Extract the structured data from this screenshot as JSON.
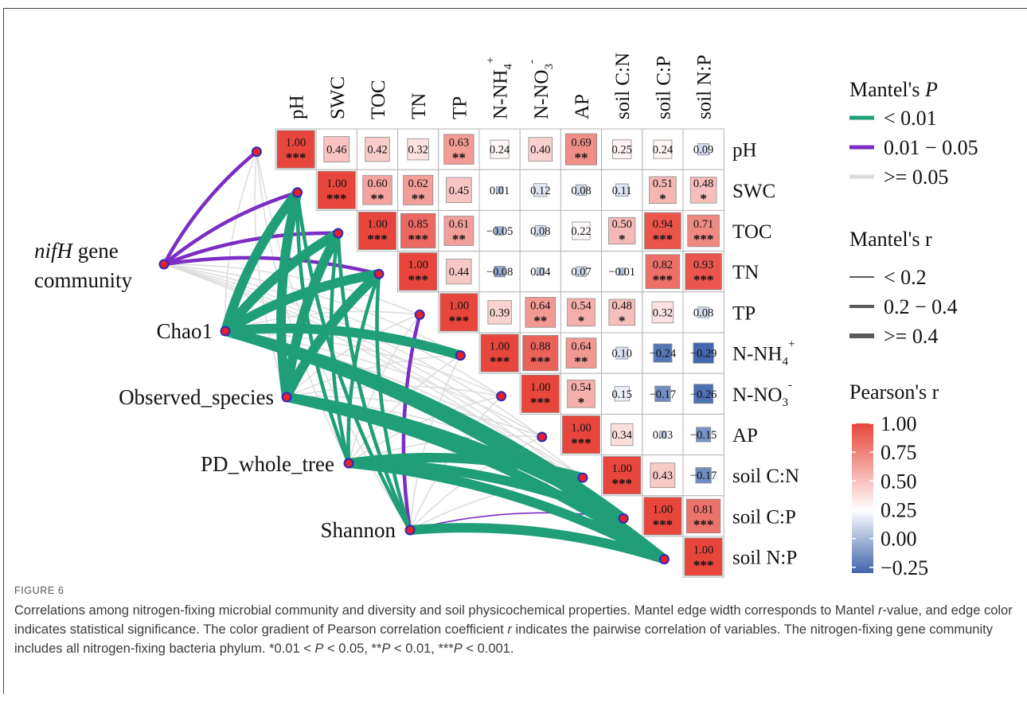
{
  "chart_data": {
    "type": "heatmap",
    "title": "",
    "variables": [
      "pH",
      "SWC",
      "TOC",
      "TN",
      "TP",
      "N-NH4+",
      "N-NO3-",
      "AP",
      "soil C:N",
      "soil C:P",
      "soil N:P"
    ],
    "variable_labels": [
      {
        "base": "pH",
        "sub": "",
        "sup": ""
      },
      {
        "base": "SWC",
        "sub": "",
        "sup": ""
      },
      {
        "base": "TOC",
        "sub": "",
        "sup": ""
      },
      {
        "base": "TN",
        "sub": "",
        "sup": ""
      },
      {
        "base": "TP",
        "sub": "",
        "sup": ""
      },
      {
        "base": "N-NH",
        "sub": "4",
        "sup": "+"
      },
      {
        "base": "N-NO",
        "sub": "3",
        "sup": "-"
      },
      {
        "base": "AP",
        "sub": "",
        "sup": ""
      },
      {
        "base": "soil C:N",
        "sub": "",
        "sup": ""
      },
      {
        "base": "soil C:P",
        "sub": "",
        "sup": ""
      },
      {
        "base": "soil N:P",
        "sub": "",
        "sup": ""
      }
    ],
    "pearson_matrix_upper": [
      [
        {
          "r": 1.0,
          "label": "1.00",
          "sig": "***"
        },
        {
          "r": 0.46,
          "label": "0.46",
          "sig": ""
        },
        {
          "r": 0.42,
          "label": "0.42",
          "sig": ""
        },
        {
          "r": 0.32,
          "label": "0.32",
          "sig": ""
        },
        {
          "r": 0.63,
          "label": "0.63",
          "sig": "**"
        },
        {
          "r": 0.24,
          "label": "0.24",
          "sig": ""
        },
        {
          "r": 0.4,
          "label": "0.40",
          "sig": ""
        },
        {
          "r": 0.69,
          "label": "0.69",
          "sig": "**"
        },
        {
          "r": 0.25,
          "label": "0.25",
          "sig": ""
        },
        {
          "r": 0.24,
          "label": "0.24",
          "sig": ""
        },
        {
          "r": 0.09,
          "label": "0.09",
          "sig": ""
        }
      ],
      [
        {
          "r": 1.0,
          "label": "1.00",
          "sig": "***"
        },
        {
          "r": 0.6,
          "label": "0.60",
          "sig": "**"
        },
        {
          "r": 0.62,
          "label": "0.62",
          "sig": "**"
        },
        {
          "r": 0.45,
          "label": "0.45",
          "sig": ""
        },
        {
          "r": 0.01,
          "label": "0.01",
          "sig": ""
        },
        {
          "r": 0.12,
          "label": "0.12",
          "sig": ""
        },
        {
          "r": 0.08,
          "label": "0.08",
          "sig": ""
        },
        {
          "r": 0.11,
          "label": "0.11",
          "sig": ""
        },
        {
          "r": 0.51,
          "label": "0.51",
          "sig": "*"
        },
        {
          "r": 0.48,
          "label": "0.48",
          "sig": "*"
        }
      ],
      [
        {
          "r": 1.0,
          "label": "1.00",
          "sig": "***"
        },
        {
          "r": 0.85,
          "label": "0.85",
          "sig": "***"
        },
        {
          "r": 0.61,
          "label": "0.61",
          "sig": "**"
        },
        {
          "r": -0.05,
          "label": "−0.05",
          "sig": ""
        },
        {
          "r": 0.08,
          "label": "0.08",
          "sig": ""
        },
        {
          "r": 0.22,
          "label": "0.22",
          "sig": ""
        },
        {
          "r": 0.5,
          "label": "0.50",
          "sig": "*"
        },
        {
          "r": 0.94,
          "label": "0.94",
          "sig": "***"
        },
        {
          "r": 0.71,
          "label": "0.71",
          "sig": "***"
        }
      ],
      [
        {
          "r": 1.0,
          "label": "1.00",
          "sig": "***"
        },
        {
          "r": 0.44,
          "label": "0.44",
          "sig": ""
        },
        {
          "r": -0.08,
          "label": "−0.08",
          "sig": ""
        },
        {
          "r": 0.04,
          "label": "0.04",
          "sig": ""
        },
        {
          "r": 0.07,
          "label": "0.07",
          "sig": ""
        },
        {
          "r": -0.01,
          "label": "−0.01",
          "sig": ""
        },
        {
          "r": 0.82,
          "label": "0.82",
          "sig": "***"
        },
        {
          "r": 0.93,
          "label": "0.93",
          "sig": "***"
        }
      ],
      [
        {
          "r": 1.0,
          "label": "1.00",
          "sig": "***"
        },
        {
          "r": 0.39,
          "label": "0.39",
          "sig": ""
        },
        {
          "r": 0.64,
          "label": "0.64",
          "sig": "**"
        },
        {
          "r": 0.54,
          "label": "0.54",
          "sig": "*"
        },
        {
          "r": 0.48,
          "label": "0.48",
          "sig": "*"
        },
        {
          "r": 0.32,
          "label": "0.32",
          "sig": ""
        },
        {
          "r": 0.08,
          "label": "0.08",
          "sig": ""
        }
      ],
      [
        {
          "r": 1.0,
          "label": "1.00",
          "sig": "***"
        },
        {
          "r": 0.88,
          "label": "0.88",
          "sig": "***"
        },
        {
          "r": 0.64,
          "label": "0.64",
          "sig": "**"
        },
        {
          "r": 0.1,
          "label": "0.10",
          "sig": ""
        },
        {
          "r": -0.24,
          "label": "−0.24",
          "sig": ""
        },
        {
          "r": -0.29,
          "label": "−0.29",
          "sig": ""
        }
      ],
      [
        {
          "r": 1.0,
          "label": "1.00",
          "sig": "***"
        },
        {
          "r": 0.54,
          "label": "0.54",
          "sig": "*"
        },
        {
          "r": 0.15,
          "label": "0.15",
          "sig": ""
        },
        {
          "r": -0.17,
          "label": "−0.17",
          "sig": ""
        },
        {
          "r": -0.26,
          "label": "−0.26",
          "sig": ""
        }
      ],
      [
        {
          "r": 1.0,
          "label": "1.00",
          "sig": "***"
        },
        {
          "r": 0.34,
          "label": "0.34",
          "sig": ""
        },
        {
          "r": 0.03,
          "label": "0.03",
          "sig": ""
        },
        {
          "r": -0.15,
          "label": "−0.15",
          "sig": ""
        }
      ],
      [
        {
          "r": 1.0,
          "label": "1.00",
          "sig": "***"
        },
        {
          "r": 0.43,
          "label": "0.43",
          "sig": ""
        },
        {
          "r": -0.17,
          "label": "−0.17",
          "sig": ""
        }
      ],
      [
        {
          "r": 1.0,
          "label": "1.00",
          "sig": "***"
        },
        {
          "r": 0.81,
          "label": "0.81",
          "sig": "***"
        }
      ],
      [
        {
          "r": 1.0,
          "label": "1.00",
          "sig": "***"
        }
      ]
    ],
    "mantel_sources": [
      {
        "label": "community",
        "label_italic": "nifH",
        "label_line1": " gene"
      },
      {
        "label": "Chao1"
      },
      {
        "label": "Observed_species"
      },
      {
        "label": "PD_whole_tree"
      },
      {
        "label": "Shannon"
      }
    ],
    "mantel_edges": [
      {
        "source": 0,
        "target": 0,
        "r_class": "0.2 - 0.4",
        "p_class": "0.01 - 0.05"
      },
      {
        "source": 0,
        "target": 1,
        "r_class": "0.2 - 0.4",
        "p_class": "0.01 - 0.05"
      },
      {
        "source": 0,
        "target": 2,
        "r_class": "0.2 - 0.4",
        "p_class": "0.01 - 0.05"
      },
      {
        "source": 0,
        "target": 3,
        "r_class": "0.2 - 0.4",
        "p_class": "0.01 - 0.05"
      },
      {
        "source": 0,
        "target": 4,
        "r_class": "< 0.2",
        "p_class": ">= 0.05"
      },
      {
        "source": 0,
        "target": 5,
        "r_class": "< 0.2",
        "p_class": ">= 0.05"
      },
      {
        "source": 0,
        "target": 6,
        "r_class": "< 0.2",
        "p_class": ">= 0.05"
      },
      {
        "source": 0,
        "target": 7,
        "r_class": "< 0.2",
        "p_class": ">= 0.05"
      },
      {
        "source": 0,
        "target": 8,
        "r_class": "< 0.2",
        "p_class": ">= 0.05"
      },
      {
        "source": 0,
        "target": 9,
        "r_class": "< 0.2",
        "p_class": ">= 0.05"
      },
      {
        "source": 0,
        "target": 10,
        "r_class": "< 0.2",
        "p_class": ">= 0.05"
      },
      {
        "source": 1,
        "target": 0,
        "r_class": "< 0.2",
        "p_class": ">= 0.05"
      },
      {
        "source": 1,
        "target": 1,
        "r_class": ">= 0.4",
        "p_class": "< 0.01"
      },
      {
        "source": 1,
        "target": 2,
        "r_class": ">= 0.4",
        "p_class": "< 0.01"
      },
      {
        "source": 1,
        "target": 3,
        "r_class": ">= 0.4",
        "p_class": "< 0.01"
      },
      {
        "source": 1,
        "target": 4,
        "r_class": "< 0.2",
        "p_class": ">= 0.05"
      },
      {
        "source": 1,
        "target": 5,
        "r_class": ">= 0.4",
        "p_class": "< 0.01"
      },
      {
        "source": 1,
        "target": 6,
        "r_class": "< 0.2",
        "p_class": ">= 0.05"
      },
      {
        "source": 1,
        "target": 7,
        "r_class": "< 0.2",
        "p_class": ">= 0.05"
      },
      {
        "source": 1,
        "target": 8,
        "r_class": "< 0.2",
        "p_class": ">= 0.05"
      },
      {
        "source": 1,
        "target": 9,
        "r_class": ">= 0.4",
        "p_class": "< 0.01"
      },
      {
        "source": 1,
        "target": 10,
        "r_class": ">= 0.4",
        "p_class": "< 0.01"
      },
      {
        "source": 2,
        "target": 0,
        "r_class": "< 0.2",
        "p_class": ">= 0.05"
      },
      {
        "source": 2,
        "target": 1,
        "r_class": ">= 0.4",
        "p_class": "< 0.01"
      },
      {
        "source": 2,
        "target": 2,
        "r_class": ">= 0.4",
        "p_class": "< 0.01"
      },
      {
        "source": 2,
        "target": 3,
        "r_class": ">= 0.4",
        "p_class": "< 0.01"
      },
      {
        "source": 2,
        "target": 4,
        "r_class": "< 0.2",
        "p_class": ">= 0.05"
      },
      {
        "source": 2,
        "target": 5,
        "r_class": "< 0.2",
        "p_class": ">= 0.05"
      },
      {
        "source": 2,
        "target": 6,
        "r_class": "< 0.2",
        "p_class": ">= 0.05"
      },
      {
        "source": 2,
        "target": 7,
        "r_class": "< 0.2",
        "p_class": ">= 0.05"
      },
      {
        "source": 2,
        "target": 8,
        "r_class": "< 0.2",
        "p_class": ">= 0.05"
      },
      {
        "source": 2,
        "target": 9,
        "r_class": ">= 0.4",
        "p_class": "< 0.01"
      },
      {
        "source": 2,
        "target": 10,
        "r_class": ">= 0.4",
        "p_class": "< 0.01"
      },
      {
        "source": 3,
        "target": 0,
        "r_class": "< 0.2",
        "p_class": ">= 0.05"
      },
      {
        "source": 3,
        "target": 1,
        "r_class": "0.2 - 0.4",
        "p_class": "< 0.01"
      },
      {
        "source": 3,
        "target": 2,
        "r_class": "0.2 - 0.4",
        "p_class": "< 0.01"
      },
      {
        "source": 3,
        "target": 3,
        "r_class": "0.2 - 0.4",
        "p_class": "< 0.01"
      },
      {
        "source": 3,
        "target": 4,
        "r_class": "< 0.2",
        "p_class": ">= 0.05"
      },
      {
        "source": 3,
        "target": 5,
        "r_class": "< 0.2",
        "p_class": ">= 0.05"
      },
      {
        "source": 3,
        "target": 6,
        "r_class": "< 0.2",
        "p_class": ">= 0.05"
      },
      {
        "source": 3,
        "target": 7,
        "r_class": "< 0.2",
        "p_class": ">= 0.05"
      },
      {
        "source": 3,
        "target": 8,
        "r_class": ">= 0.4",
        "p_class": "< 0.01"
      },
      {
        "source": 3,
        "target": 9,
        "r_class": ">= 0.4",
        "p_class": "< 0.01"
      },
      {
        "source": 3,
        "target": 10,
        "r_class": ">= 0.4",
        "p_class": "< 0.01"
      },
      {
        "source": 4,
        "target": 0,
        "r_class": "< 0.2",
        "p_class": ">= 0.05"
      },
      {
        "source": 4,
        "target": 1,
        "r_class": "0.2 - 0.4",
        "p_class": "< 0.01"
      },
      {
        "source": 4,
        "target": 2,
        "r_class": "0.2 - 0.4",
        "p_class": "< 0.01"
      },
      {
        "source": 4,
        "target": 3,
        "r_class": "0.2 - 0.4",
        "p_class": "< 0.01"
      },
      {
        "source": 4,
        "target": 4,
        "r_class": "0.2 - 0.4",
        "p_class": "0.01 - 0.05"
      },
      {
        "source": 4,
        "target": 5,
        "r_class": "< 0.2",
        "p_class": ">= 0.05"
      },
      {
        "source": 4,
        "target": 6,
        "r_class": "< 0.2",
        "p_class": ">= 0.05"
      },
      {
        "source": 4,
        "target": 7,
        "r_class": "< 0.2",
        "p_class": ">= 0.05"
      },
      {
        "source": 4,
        "target": 8,
        "r_class": "< 0.2",
        "p_class": ">= 0.05"
      },
      {
        "source": 4,
        "target": 9,
        "r_class": "< 0.2",
        "p_class": "0.01 - 0.05"
      },
      {
        "source": 4,
        "target": 10,
        "r_class": ">= 0.4",
        "p_class": "< 0.01"
      }
    ],
    "legend": {
      "mantel_p_title": "Mantel's P",
      "mantel_p_title_prefix": "Mantel's ",
      "mantel_p_title_italic": "P",
      "mantel_p_items": [
        {
          "label": "< 0.01",
          "color": "#1f9e78"
        },
        {
          "label": "0.01 − 0.05",
          "color": "#7b2dc4"
        },
        {
          "label": ">= 0.05",
          "color": "#dddddd"
        }
      ],
      "mantel_r_title": "Mantel's r",
      "mantel_r_items": [
        {
          "label": "< 0.2",
          "weight": 1
        },
        {
          "label": "0.2 − 0.4",
          "weight": 2
        },
        {
          "label": ">= 0.4",
          "weight": 3
        }
      ],
      "pearson_title": "Pearson's r",
      "pearson_ticks": [
        "1.00",
        "0.75",
        "0.50",
        "0.25",
        "0.00",
        "−0.25"
      ],
      "pearson_range": [
        -0.3,
        1.0
      ],
      "placement": "right"
    },
    "colors": {
      "high": "#e8463c",
      "mid": "#ffffff",
      "low": "#3f64ad",
      "p_sig_strong": "#1f9e78",
      "p_sig_weak": "#7b2dc4",
      "p_ns": "#dddddd",
      "node_fill": "#e8202c",
      "node_stroke": "#2b2bb8"
    }
  },
  "caption": {
    "figure_label": "FIGURE 6",
    "text_parts": [
      {
        "t": "Correlations among nitrogen-fixing microbial community and diversity and soil physicochemical properties. Mantel edge width corresponds to Mantel ",
        "i": false
      },
      {
        "t": "r",
        "i": true
      },
      {
        "t": "-value, and edge color indicates statistical significance. The color gradient of Pearson correlation coefficient ",
        "i": false
      },
      {
        "t": "r",
        "i": true
      },
      {
        "t": " indicates the pairwise correlation of variables. The nitrogen-fixing gene community includes all nitrogen-fixing bacteria phylum. *0.01 < ",
        "i": false
      },
      {
        "t": "P",
        "i": true
      },
      {
        "t": " < 0.05, **",
        "i": false
      },
      {
        "t": "P",
        "i": true
      },
      {
        "t": " < 0.01, ***",
        "i": false
      },
      {
        "t": "P",
        "i": true
      },
      {
        "t": " < 0.001.",
        "i": false
      }
    ]
  }
}
